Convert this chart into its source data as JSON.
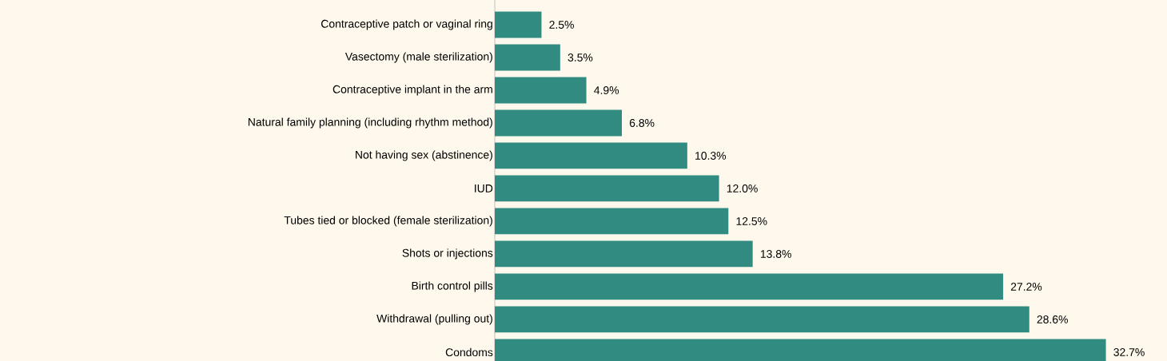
{
  "chart_data": {
    "type": "bar",
    "orientation": "horizontal",
    "categories": [
      "Contraceptive patch or vaginal ring",
      "Vasectomy (male sterilization)",
      "Contraceptive implant in the arm",
      "Natural family planning (including rhythm method)",
      "Not having sex (abstinence)",
      "IUD",
      "Tubes tied or blocked (female sterilization)",
      "Shots or injections",
      "Birth control pills",
      "Withdrawal (pulling out)",
      "Condoms"
    ],
    "values": [
      2.5,
      3.5,
      4.9,
      6.8,
      10.3,
      12.0,
      12.5,
      13.8,
      27.2,
      28.6,
      32.7
    ],
    "color": "#318b80",
    "value_labels": [
      "2.5%",
      "3.5%",
      "4.9%",
      "6.8%",
      "10.3%",
      "12.0%",
      "12.5%",
      "13.8%",
      "27.2%",
      "28.6%",
      "32.7%"
    ]
  }
}
